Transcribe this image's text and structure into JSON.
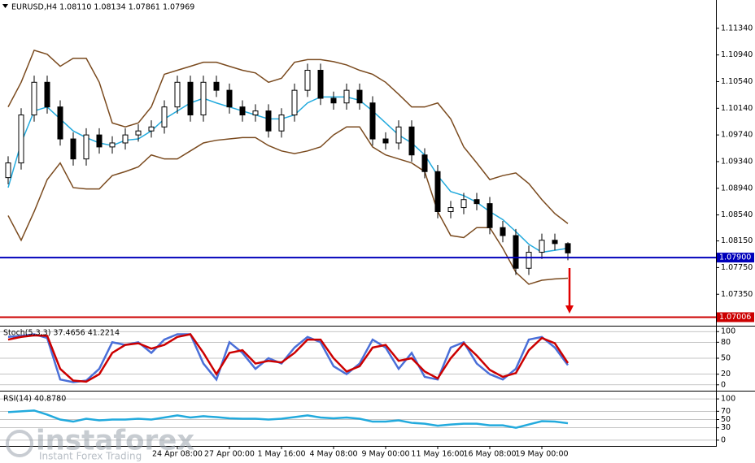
{
  "chart_data": [
    {
      "type": "candlestick",
      "title": "EURUSD,H4 1.08110 1.08134 1.07861 1.07969",
      "categories": [
        null,
        null,
        null,
        null,
        null,
        null,
        null,
        null,
        null,
        null,
        null,
        null,
        null,
        "24 Apr 08:00",
        null,
        null,
        null,
        "27 Apr 00:00",
        null,
        null,
        null,
        "1 May 16:00",
        null,
        null,
        null,
        "4 May 08:00",
        null,
        null,
        null,
        "9 May 00:00",
        null,
        null,
        null,
        "11 May 16:00",
        null,
        null,
        null,
        "16 May 08:00",
        null,
        null,
        null,
        "19 May 00:00",
        null,
        null
      ],
      "open": [
        1.091,
        1.0932,
        1.1004,
        1.1053,
        1.1016,
        1.0968,
        1.0938,
        1.0974,
        1.0956,
        1.0962,
        1.0974,
        1.098,
        1.0986,
        1.1016,
        1.1053,
        1.1004,
        1.1053,
        1.1041,
        1.1016,
        1.1004,
        1.101,
        1.098,
        1.1004,
        1.1041,
        1.1071,
        1.1029,
        1.1022,
        1.1041,
        1.1022,
        1.0968,
        1.0962,
        1.0986,
        1.0944,
        1.0919,
        1.0859,
        1.0865,
        1.0877,
        1.0871,
        1.0835,
        1.0823,
        1.0774,
        1.0798,
        1.0816,
        1.0811
      ],
      "high": [
        1.0942,
        1.1014,
        1.1063,
        1.1063,
        1.1026,
        1.0978,
        1.0984,
        1.0984,
        1.0972,
        1.0984,
        1.099,
        1.0996,
        1.1026,
        1.1063,
        1.1063,
        1.1063,
        1.1063,
        1.1051,
        1.1026,
        1.102,
        1.102,
        1.1014,
        1.1051,
        1.1081,
        1.1081,
        1.1039,
        1.1051,
        1.1051,
        1.1032,
        1.0978,
        1.0996,
        1.0996,
        1.0954,
        1.0929,
        1.0875,
        1.0887,
        1.0887,
        1.0881,
        1.0845,
        1.0833,
        1.0808,
        1.0826,
        1.0826,
        1.0813
      ],
      "low": [
        1.09,
        1.0922,
        1.0994,
        1.1006,
        1.0958,
        1.0928,
        1.0928,
        1.0946,
        1.0946,
        1.0952,
        1.0964,
        1.097,
        1.0976,
        1.1006,
        1.0994,
        1.0994,
        1.1031,
        1.1006,
        1.0994,
        1.0994,
        1.097,
        1.097,
        1.0994,
        1.1031,
        1.1019,
        1.1012,
        1.1012,
        1.1012,
        1.0958,
        1.0952,
        1.0952,
        1.0934,
        1.0909,
        1.0849,
        1.0849,
        1.0855,
        1.0861,
        1.0825,
        1.0813,
        1.0764,
        1.0764,
        1.0788,
        1.0801,
        1.0786
      ],
      "close": [
        1.0932,
        1.1004,
        1.1053,
        1.1016,
        1.0968,
        1.0938,
        1.0974,
        1.0956,
        1.0962,
        1.0974,
        1.098,
        1.0986,
        1.1016,
        1.1053,
        1.1004,
        1.1053,
        1.1041,
        1.1016,
        1.1004,
        1.101,
        1.098,
        1.1004,
        1.1041,
        1.1071,
        1.1029,
        1.1022,
        1.1041,
        1.1022,
        1.0968,
        1.0962,
        1.0986,
        1.0944,
        1.0919,
        1.0859,
        1.0865,
        1.0877,
        1.0871,
        1.0835,
        1.0823,
        1.0774,
        1.0798,
        1.0816,
        1.0811,
        1.0797
      ],
      "up_color": "#ffffff",
      "down_color": "#000000",
      "lines": [
        {
          "color": "#7a4a1e",
          "values": [
            1.1016,
            1.1053,
            1.1101,
            1.1095,
            1.1077,
            1.1089,
            1.1089,
            1.1053,
            1.0992,
            1.0986,
            1.0992,
            1.1016,
            1.1065,
            1.1071,
            1.1077,
            1.1083,
            1.1083,
            1.1077,
            1.1071,
            1.1067,
            1.1053,
            1.1059,
            1.1083,
            1.1087,
            1.1087,
            1.1084,
            1.1079,
            1.1071,
            1.1065,
            1.1053,
            1.1035,
            1.1016,
            1.1016,
            1.1022,
            1.0998,
            1.0956,
            1.0932,
            1.0907,
            1.0913,
            1.0917,
            1.0901,
            1.0877,
            1.0856,
            1.0841
          ]
        },
        {
          "color": "#7a4a1e",
          "values": [
            1.0853,
            1.0816,
            1.0859,
            1.0907,
            1.0932,
            1.0895,
            1.0893,
            1.0893,
            1.0913,
            1.0919,
            1.0926,
            1.0944,
            1.0938,
            1.0938,
            1.095,
            1.0962,
            1.0966,
            1.0968,
            1.097,
            1.097,
            1.0958,
            1.095,
            1.0946,
            1.095,
            1.0956,
            1.0974,
            1.0986,
            1.0986,
            1.0956,
            1.0944,
            1.0938,
            1.0932,
            1.0919,
            1.0859,
            1.0823,
            1.082,
            1.0835,
            1.0835,
            1.0804,
            1.0768,
            1.075,
            1.0756,
            1.0758,
            1.0759
          ]
        },
        {
          "color": "#22aadd",
          "values": [
            1.0895,
            1.0962,
            1.101,
            1.1016,
            1.0998,
            1.098,
            1.097,
            1.0962,
            1.0958,
            1.0966,
            1.0968,
            1.098,
            1.0998,
            1.101,
            1.1022,
            1.1029,
            1.1022,
            1.1016,
            1.101,
            1.1004,
            1.0998,
            1.0998,
            1.1004,
            1.1022,
            1.1031,
            1.1031,
            1.1031,
            1.1026,
            1.101,
            1.0992,
            1.0974,
            1.0962,
            1.0944,
            1.0913,
            1.0889,
            1.0883,
            1.0873,
            1.0859,
            1.0847,
            1.0829,
            1.081,
            1.0798,
            1.0801,
            1.0804
          ]
        }
      ],
      "levels": [
        {
          "value": 1.079,
          "label": "1.07900",
          "color": "#0000bb"
        },
        {
          "value": 1.07006,
          "label": "1.07006",
          "color": "#cc0000"
        }
      ],
      "ylim": [
        1.0689,
        1.1174
      ],
      "yticks": [
        {
          "value": 1.1134,
          "label": "1.11340"
        },
        {
          "value": 1.1094,
          "label": "1.10940"
        },
        {
          "value": 1.1054,
          "label": "1.10540"
        },
        {
          "value": 1.1014,
          "label": "1.10140"
        },
        {
          "value": 1.0974,
          "label": "1.09740"
        },
        {
          "value": 1.0934,
          "label": "1.09340"
        },
        {
          "value": 1.0894,
          "label": "1.08940"
        },
        {
          "value": 1.0854,
          "label": "1.08540"
        },
        {
          "value": 1.0815,
          "label": "1.08150"
        },
        {
          "value": 1.0775,
          "label": "1.07750"
        },
        {
          "value": 1.0735,
          "label": "1.07350"
        }
      ],
      "grid": false
    },
    {
      "type": "line",
      "title": "Stoch(5,3,3) 37.4656 41.2214",
      "series": [
        {
          "color": "#4a6fd8",
          "values": [
            90,
            92,
            95,
            88,
            10,
            5,
            8,
            30,
            80,
            75,
            80,
            60,
            85,
            95,
            95,
            40,
            10,
            80,
            60,
            30,
            50,
            40,
            70,
            90,
            80,
            35,
            20,
            40,
            85,
            70,
            30,
            60,
            15,
            10,
            70,
            80,
            40,
            20,
            10,
            30,
            85,
            90,
            70,
            37
          ]
        },
        {
          "color": "#cc0000",
          "values": [
            85,
            90,
            93,
            92,
            30,
            8,
            6,
            20,
            60,
            75,
            78,
            68,
            75,
            90,
            95,
            60,
            20,
            60,
            65,
            40,
            45,
            42,
            60,
            85,
            85,
            50,
            25,
            35,
            70,
            75,
            45,
            50,
            25,
            12,
            50,
            78,
            55,
            28,
            15,
            22,
            65,
            88,
            78,
            41
          ]
        }
      ],
      "ylim": [
        -8,
        108
      ],
      "yticks": [
        0,
        20,
        50,
        80,
        100
      ],
      "grid": true
    },
    {
      "type": "line",
      "title": "RSI(14) 40.8780",
      "series": [
        {
          "color": "#22aadd",
          "values": [
            68,
            70,
            72,
            62,
            50,
            45,
            52,
            48,
            50,
            50,
            52,
            50,
            55,
            60,
            55,
            58,
            56,
            53,
            52,
            52,
            50,
            52,
            56,
            60,
            55,
            53,
            55,
            52,
            45,
            45,
            48,
            42,
            40,
            35,
            38,
            40,
            40,
            36,
            36,
            30,
            38,
            46,
            45,
            41
          ]
        }
      ],
      "ylim": [
        -14,
        114
      ],
      "yticks": [
        0,
        30,
        50,
        70,
        100
      ],
      "grid": true
    }
  ],
  "watermark": {
    "brand": "instaforex",
    "tagline": "Instant Forex Trading"
  }
}
